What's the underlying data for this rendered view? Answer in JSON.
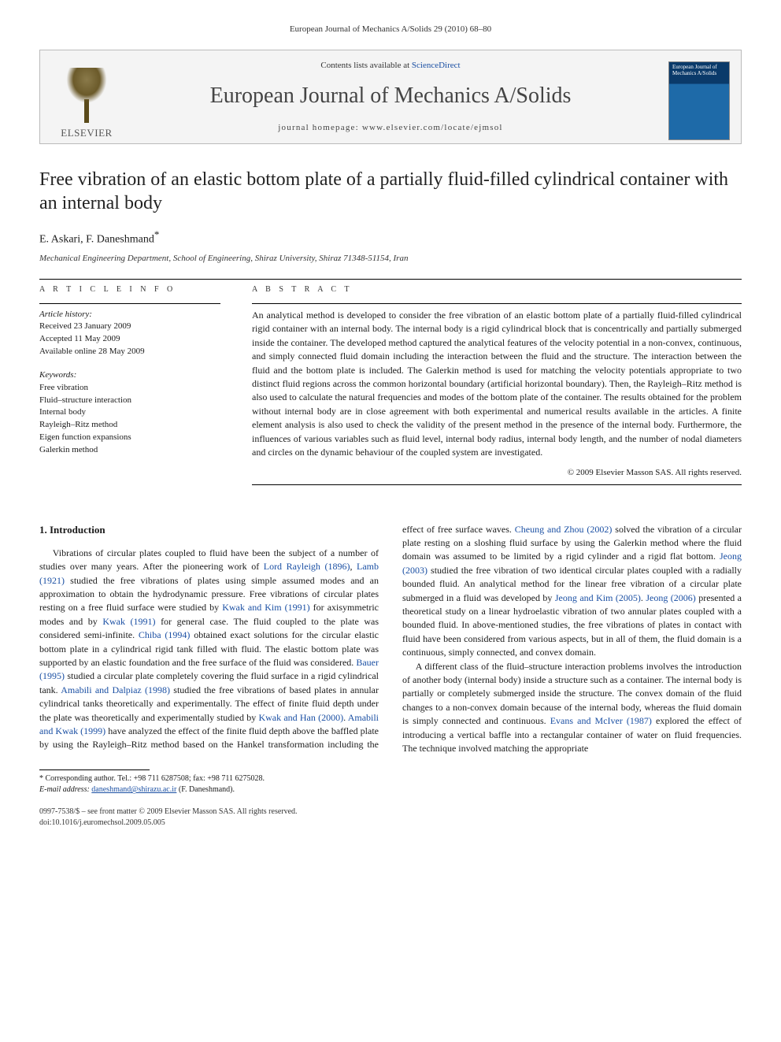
{
  "running_head": "European Journal of Mechanics A/Solids 29 (2010) 68–80",
  "banner": {
    "publisher": "ELSEVIER",
    "contents_prefix": "Contents lists available at ",
    "contents_link": "ScienceDirect",
    "journal_name": "European Journal of Mechanics A/Solids",
    "homepage_prefix": "journal homepage: ",
    "homepage_url": "www.elsevier.com/locate/ejmsol",
    "cover_text": "European Journal of Mechanics A/Solids"
  },
  "title": "Free vibration of an elastic bottom plate of a partially fluid-filled cylindrical container with an internal body",
  "authors_line": "E. Askari, F. Daneshmand",
  "corr_marker": "*",
  "affiliation": "Mechanical Engineering Department, School of Engineering, Shiraz University, Shiraz 71348-51154, Iran",
  "article_info_head": "A R T I C L E   I N F O",
  "abstract_head": "A B S T R A C T",
  "history": {
    "label": "Article history:",
    "received": "Received 23 January 2009",
    "accepted": "Accepted 11 May 2009",
    "online": "Available online 28 May 2009"
  },
  "keywords": {
    "label": "Keywords:",
    "items": [
      "Free vibration",
      "Fluid–structure interaction",
      "Internal body",
      "Rayleigh–Ritz method",
      "Eigen function expansions",
      "Galerkin method"
    ]
  },
  "abstract": "An analytical method is developed to consider the free vibration of an elastic bottom plate of a partially fluid-filled cylindrical rigid container with an internal body. The internal body is a rigid cylindrical block that is concentrically and partially submerged inside the container. The developed method captured the analytical features of the velocity potential in a non-convex, continuous, and simply connected fluid domain including the interaction between the fluid and the structure. The interaction between the fluid and the bottom plate is included. The Galerkin method is used for matching the velocity potentials appropriate to two distinct fluid regions across the common horizontal boundary (artificial horizontal boundary). Then, the Rayleigh–Ritz method is also used to calculate the natural frequencies and modes of the bottom plate of the container. The results obtained for the problem without internal body are in close agreement with both experimental and numerical results available in the articles. A finite element analysis is also used to check the validity of the present method in the presence of the internal body. Furthermore, the influences of various variables such as fluid level, internal body radius, internal body length, and the number of nodal diameters and circles on the dynamic behaviour of the coupled system are investigated.",
  "copyright": "© 2009 Elsevier Masson SAS. All rights reserved.",
  "section1_title": "1. Introduction",
  "para1_a": "Vibrations of circular plates coupled to fluid have been the subject of a number of studies over many years. After the pioneering work of ",
  "cite1": "Lord Rayleigh (1896)",
  "para1_b": ", ",
  "cite2": "Lamb (1921)",
  "para1_c": " studied the free vibrations of plates using simple assumed modes and an approximation to obtain the hydrodynamic pressure. Free vibrations of circular plates resting on a free fluid surface were studied by ",
  "cite3": "Kwak and Kim (1991)",
  "para1_d": " for axisymmetric modes and by ",
  "cite4": "Kwak (1991)",
  "para1_e": " for general case. The fluid coupled to the plate was considered semi-infinite. ",
  "cite5": "Chiba (1994)",
  "para1_f": " obtained exact solutions for the circular elastic bottom plate in a cylindrical rigid tank filled with fluid. The elastic bottom plate was supported by an elastic foundation and the free surface of the fluid was considered. ",
  "cite6": "Bauer (1995)",
  "para1_g": " studied a circular plate completely covering the fluid surface in a rigid cylindrical tank. ",
  "cite7": "Amabili and Dalpiaz (1998)",
  "para1_h": " studied the free vibrations of based plates in annular cylindrical tanks theoretically and experimentally. The effect of finite fluid depth under the plate was theoretically and experimentally studied by ",
  "cite8": "Kwak and Han (2000)",
  "para1_i": ". ",
  "cite9": "Amabili and Kwak (1999)",
  "para1_j": " have analyzed the effect of the finite fluid depth above the baffled plate by using the Rayleigh–Ritz method based on the Hankel transformation including the effect of free surface waves. ",
  "cite10": "Cheung and Zhou (2002)",
  "para1_k": " solved the vibration of a circular plate resting on a sloshing fluid surface by using the Galerkin method where the fluid domain was assumed to be limited by a rigid cylinder and a rigid flat bottom. ",
  "cite11": "Jeong (2003)",
  "para1_l": " studied the free vibration of two identical circular plates coupled with a radially bounded fluid. An analytical method for the linear free vibration of a circular plate submerged in a fluid was developed by ",
  "cite12": "Jeong and Kim (2005)",
  "para1_m": ". ",
  "cite13": "Jeong (2006)",
  "para1_n": " presented a theoretical study on a linear hydroelastic vibration of two annular plates coupled with a bounded fluid. In above-mentioned studies, the free vibrations of plates in contact with fluid have been considered from various aspects, but in all of them, the fluid domain is a continuous, simply connected, and convex domain.",
  "para2_a": "A different class of the fluid–structure interaction problems involves the introduction of another body (internal body) inside a structure such as a container. The internal body is partially or completely submerged inside the structure. The convex domain of the fluid changes to a non-convex domain because of the internal body, whereas the fluid domain is simply connected and continuous. ",
  "cite14": "Evans and McIver (1987)",
  "para2_b": " explored the effect of introducing a vertical baffle into a rectangular container of water on fluid frequencies. The technique involved matching the appropriate",
  "footnote_marker": "*",
  "footnote_corr": "Corresponding author. Tel.: +98 711 6287508; fax: +98 711 6275028.",
  "footnote_email_label": "E-mail address: ",
  "footnote_email": "daneshmand@shirazu.ac.ir",
  "footnote_email_suffix": " (F. Daneshmand).",
  "footer_line1": "0997-7538/$ – see front matter © 2009 Elsevier Masson SAS. All rights reserved.",
  "footer_line2": "doi:10.1016/j.euromechsol.2009.05.005"
}
